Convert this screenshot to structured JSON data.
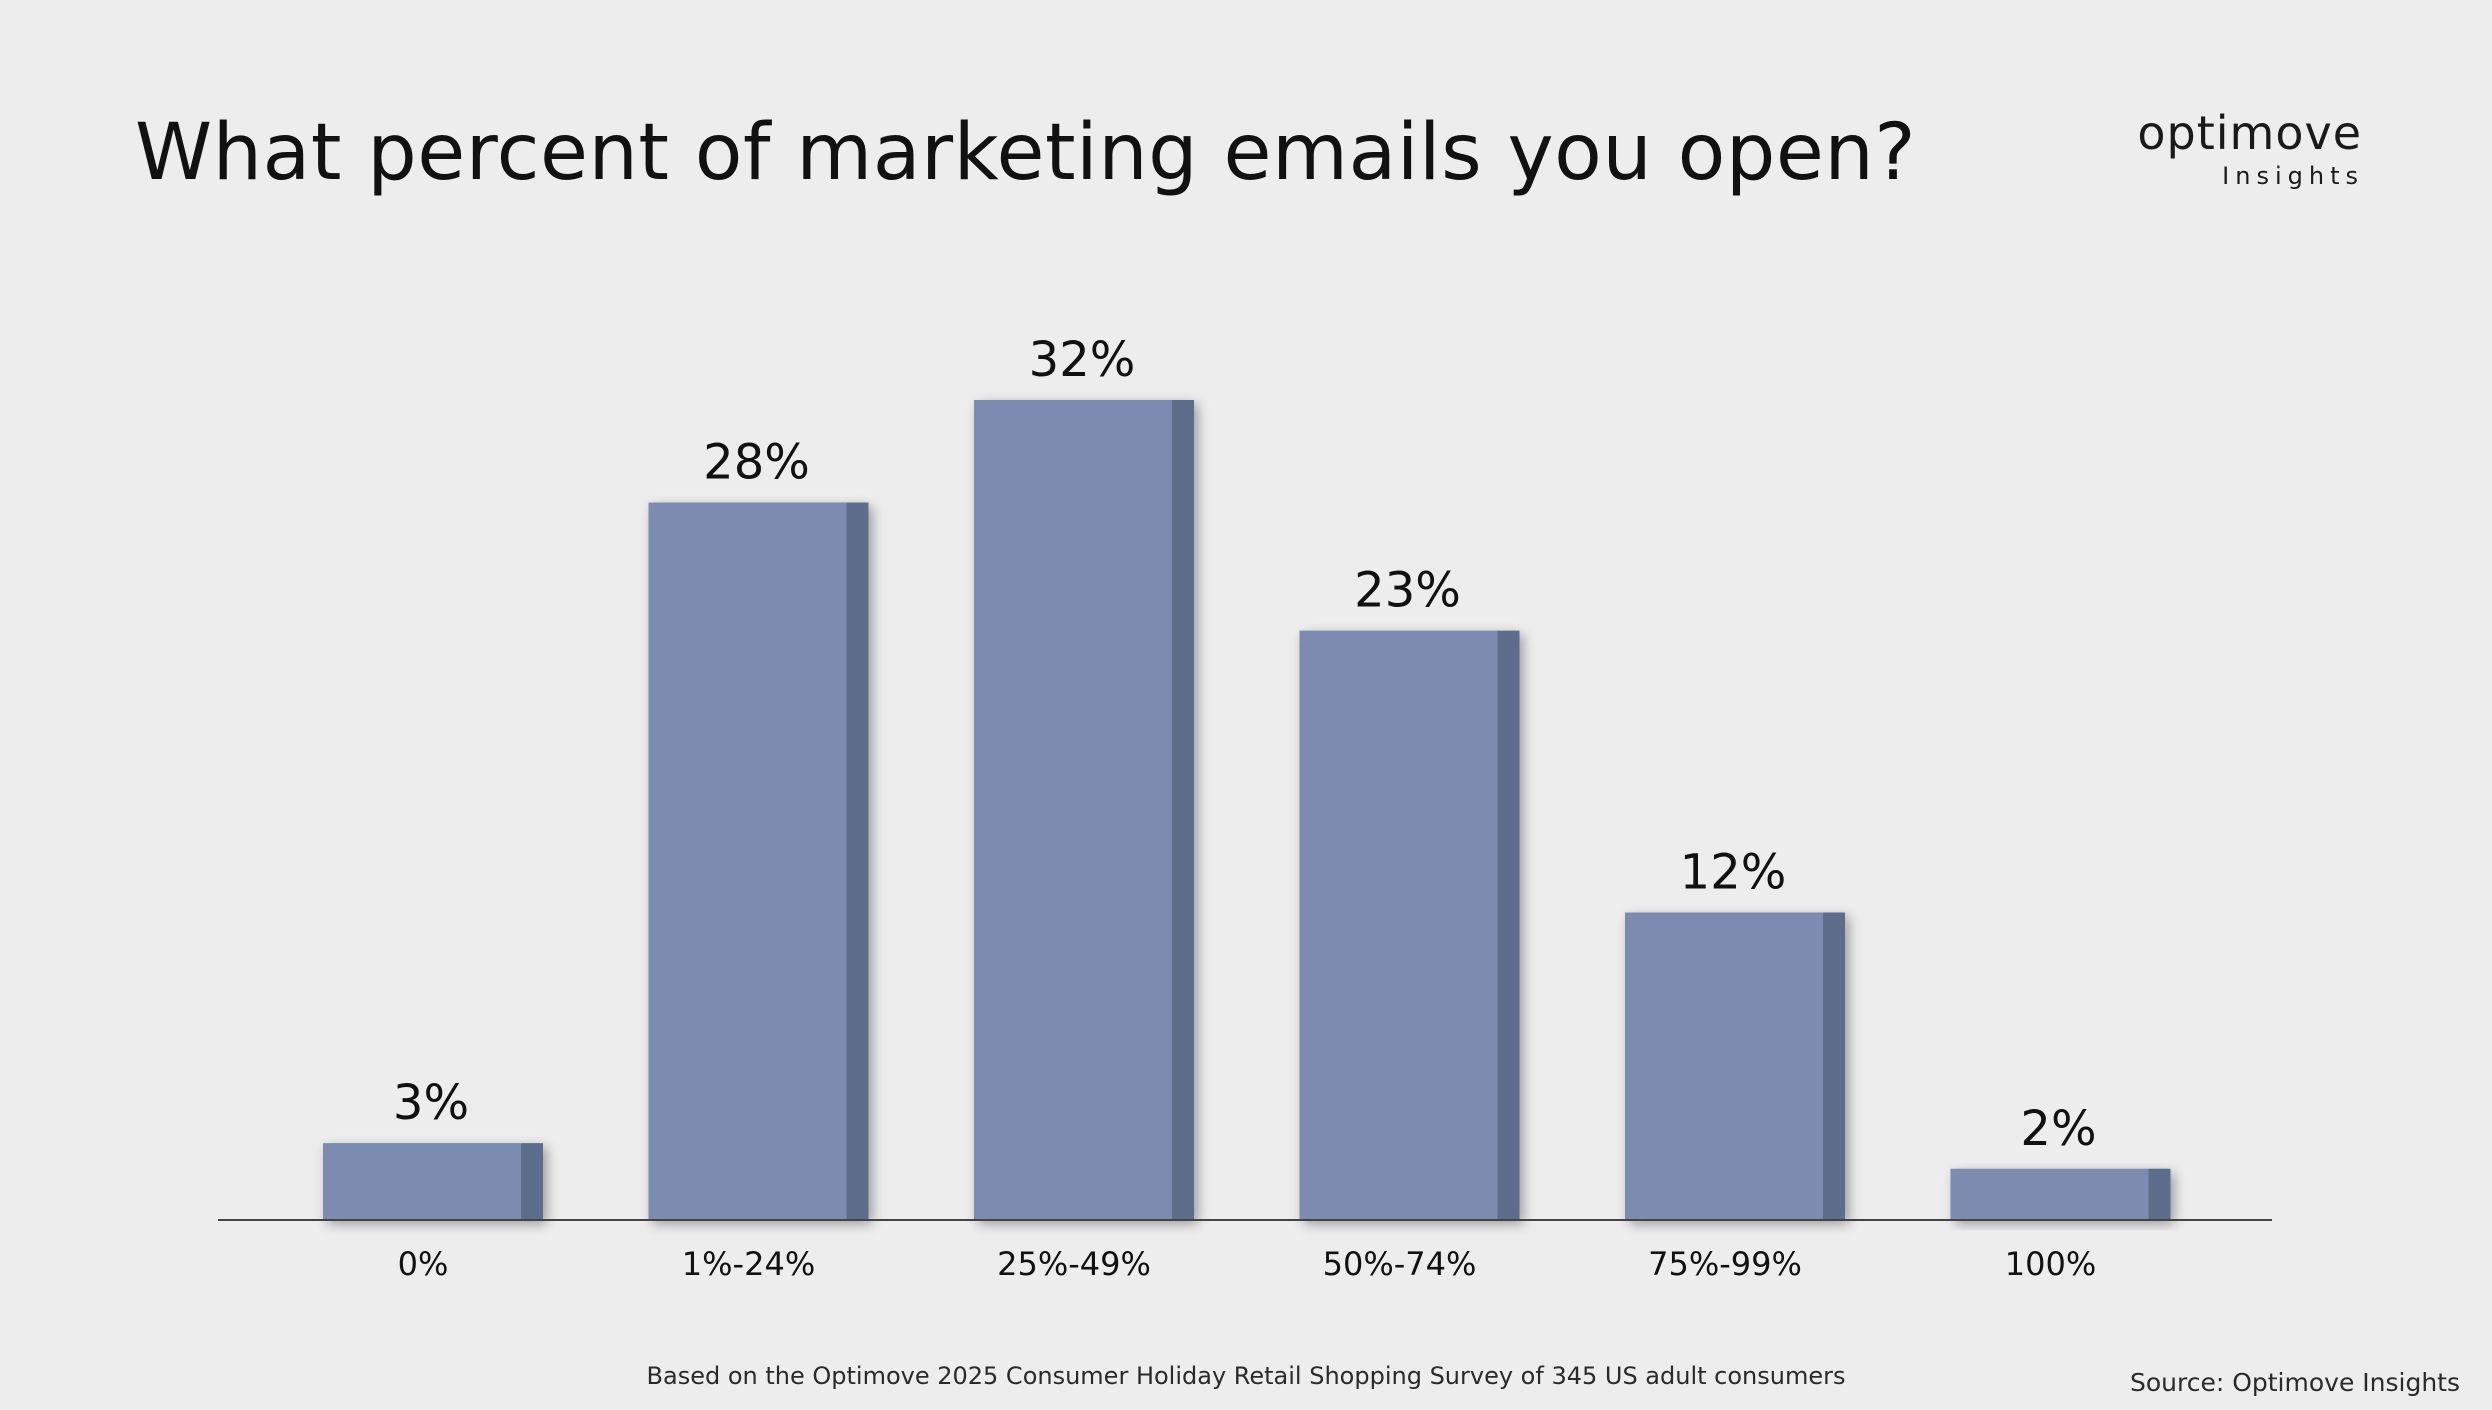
{
  "brand": {
    "name": "optimove",
    "subtitle": "Insights"
  },
  "colors": {
    "background": "#ededed",
    "bar_face": "#7b8bb0",
    "bar_side": "#5f6d8c",
    "axis": "#444444"
  },
  "chart_data": {
    "type": "bar",
    "title": "What percent of marketing emails you open?",
    "categories": [
      "0%",
      "1%-24%",
      "25%-49%",
      "50%-74%",
      "75%-99%",
      "100%"
    ],
    "values": [
      3,
      28,
      32,
      23,
      12,
      2
    ],
    "data_labels": [
      "3%",
      "28%",
      "32%",
      "23%",
      "12%",
      "2%"
    ],
    "unit": "%",
    "ylim": [
      0,
      32
    ],
    "grid": false,
    "legend": "none",
    "xlabel": "",
    "ylabel": ""
  },
  "footnote": "Based on the Optimove 2025 Consumer Holiday Retail Shopping Survey of 345 US adult consumers",
  "source": "Source: Optimove Insights"
}
